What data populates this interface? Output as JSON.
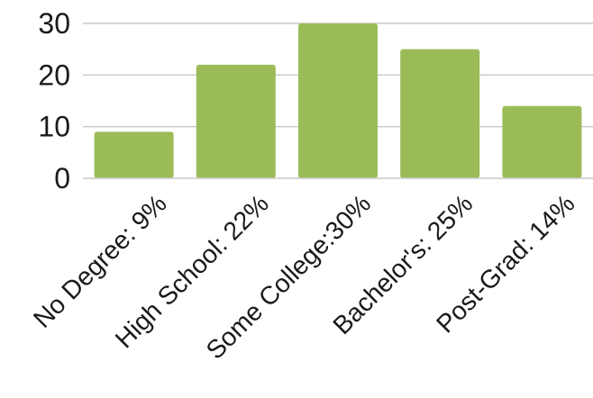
{
  "chart_data": {
    "type": "bar",
    "categories": [
      "No Degree: 9%",
      "High School: 22%",
      "Some College:30%",
      "Bachelor's: 25%",
      "Post-Grad: 14%"
    ],
    "values": [
      9,
      22,
      30,
      25,
      14
    ],
    "title": "",
    "xlabel": "",
    "ylabel": "",
    "ylim": [
      0,
      30
    ],
    "yticks": [
      0,
      10,
      20,
      30
    ],
    "grid": true,
    "legend": "none",
    "bar_color": "#9bbb59"
  }
}
